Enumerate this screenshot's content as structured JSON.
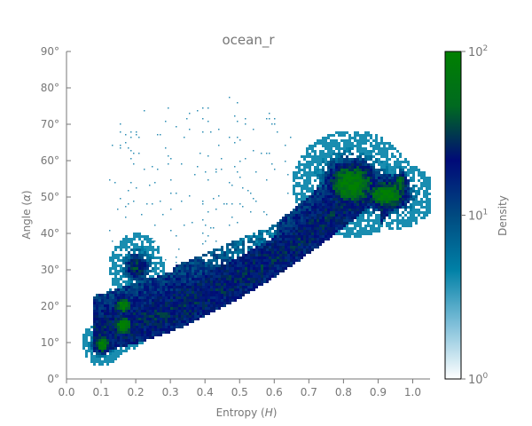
{
  "chart_data": {
    "type": "heatmap",
    "title": "ocean_r",
    "xlabel": "Entropy (H)",
    "ylabel": "Angle (α)",
    "xlim": [
      0.0,
      1.05
    ],
    "ylim": [
      0,
      90
    ],
    "x_ticks": [
      {
        "value": 0.0,
        "label": "0.0"
      },
      {
        "value": 0.1,
        "label": "0.1"
      },
      {
        "value": 0.2,
        "label": "0.2"
      },
      {
        "value": 0.3,
        "label": "0.3"
      },
      {
        "value": 0.4,
        "label": "0.4"
      },
      {
        "value": 0.5,
        "label": "0.5"
      },
      {
        "value": 0.6,
        "label": "0.6"
      },
      {
        "value": 0.7,
        "label": "0.7"
      },
      {
        "value": 0.8,
        "label": "0.8"
      },
      {
        "value": 0.9,
        "label": "0.9"
      },
      {
        "value": 1.0,
        "label": "1.0"
      }
    ],
    "y_ticks": [
      {
        "value": 0,
        "label": "0°"
      },
      {
        "value": 10,
        "label": "10°"
      },
      {
        "value": 20,
        "label": "20°"
      },
      {
        "value": 30,
        "label": "30°"
      },
      {
        "value": 40,
        "label": "40°"
      },
      {
        "value": 50,
        "label": "50°"
      },
      {
        "value": 60,
        "label": "60°"
      },
      {
        "value": 70,
        "label": "70°"
      },
      {
        "value": 80,
        "label": "80°"
      },
      {
        "value": 90,
        "label": "90°"
      }
    ],
    "grid": false,
    "colormap": "ocean_r",
    "colorbar": {
      "label": "Density",
      "scale": "log",
      "range": [
        1,
        100
      ],
      "ticks": [
        {
          "value": 1,
          "base": "10",
          "exp": "0"
        },
        {
          "value": 10,
          "base": "10",
          "exp": "1"
        },
        {
          "value": 100,
          "base": "10",
          "exp": "2"
        }
      ],
      "colors": [
        "#ffffff",
        "#7fbfd9",
        "#0080a6",
        "#004a80",
        "#000a78",
        "#006a20",
        "#008000"
      ]
    },
    "density_clusters": [
      {
        "h": 0.1,
        "alpha": 10,
        "density": 100
      },
      {
        "h": 0.16,
        "alpha": 15,
        "density": 100
      },
      {
        "h": 0.16,
        "alpha": 20,
        "density": 100
      },
      {
        "h": 0.2,
        "alpha": 31,
        "density": 40
      },
      {
        "h": 0.82,
        "alpha": 54,
        "density": 100
      },
      {
        "h": 0.92,
        "alpha": 51,
        "density": 100
      }
    ]
  }
}
